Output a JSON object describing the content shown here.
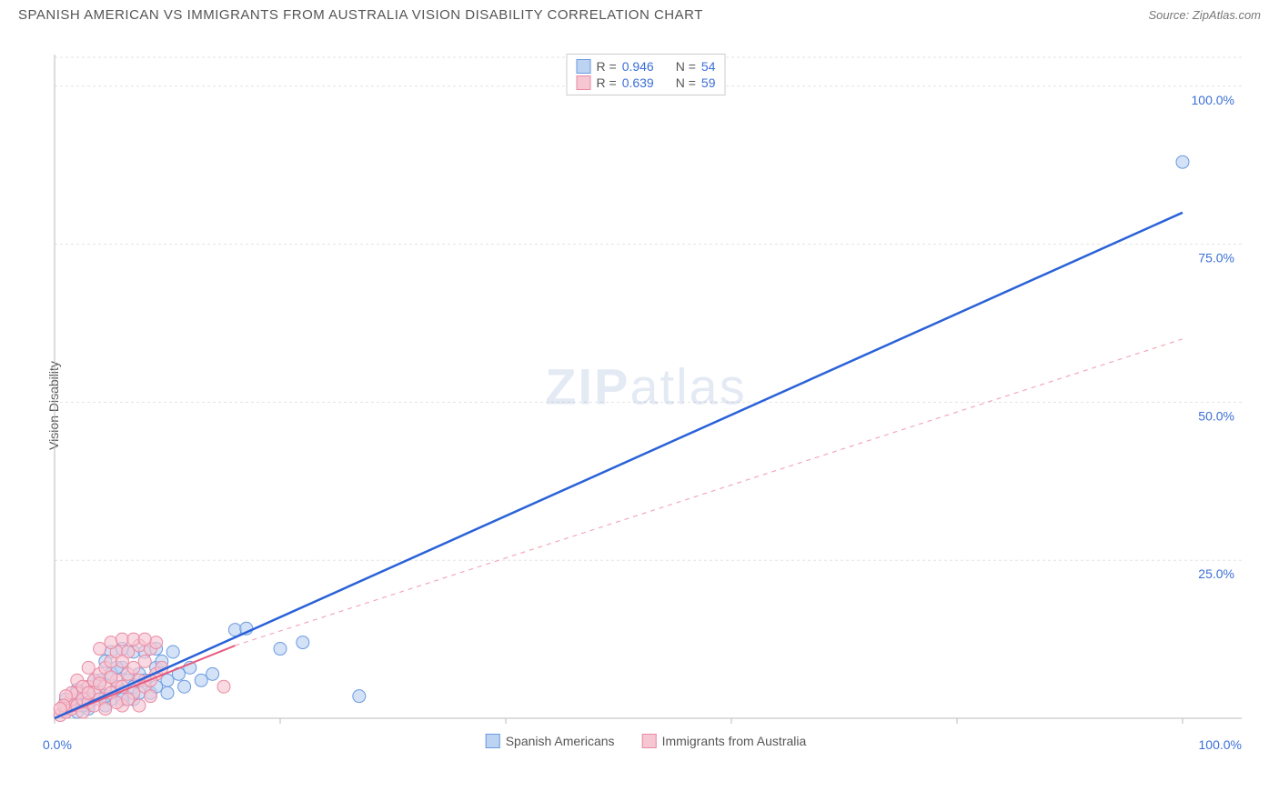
{
  "header": {
    "title": "SPANISH AMERICAN VS IMMIGRANTS FROM AUSTRALIA VISION DISABILITY CORRELATION CHART",
    "source": "Source: ZipAtlas.com"
  },
  "chart": {
    "type": "scatter",
    "ylabel": "Vision Disability",
    "watermark_a": "ZIP",
    "watermark_b": "atlas",
    "xlim": [
      0,
      100
    ],
    "ylim": [
      0,
      105
    ],
    "xtick_positions": [
      0,
      20,
      40,
      60,
      80,
      100
    ],
    "ytick_positions": [
      25,
      50,
      75,
      100
    ],
    "ytick_labels": [
      "25.0%",
      "50.0%",
      "75.0%",
      "100.0%"
    ],
    "x_start_label": "0.0%",
    "x_end_label": "100.0%",
    "grid_color": "#e3e3e3",
    "axis_color": "#cccccc",
    "background_color": "#ffffff",
    "series": [
      {
        "name": "Spanish Americans",
        "color_fill": "#bcd3f2",
        "color_stroke": "#6a9ae0",
        "marker_radius": 7,
        "r_value": "0.946",
        "n_value": "54",
        "trend": {
          "x1": 0,
          "y1": 0,
          "x2": 100,
          "y2": 80,
          "color": "#2a62d8",
          "width": 2.5,
          "dash": ""
        },
        "points": [
          [
            1,
            1
          ],
          [
            1.5,
            2
          ],
          [
            2,
            1
          ],
          [
            2,
            3
          ],
          [
            2.5,
            4
          ],
          [
            3,
            2
          ],
          [
            3,
            5
          ],
          [
            3.5,
            3
          ],
          [
            4,
            6
          ],
          [
            4,
            4
          ],
          [
            4.5,
            2
          ],
          [
            5,
            7
          ],
          [
            5,
            3
          ],
          [
            5.5,
            5
          ],
          [
            6,
            4
          ],
          [
            6,
            8
          ],
          [
            6.5,
            6
          ],
          [
            7,
            5
          ],
          [
            7,
            3
          ],
          [
            7.5,
            7
          ],
          [
            8,
            6
          ],
          [
            8.5,
            4
          ],
          [
            9,
            8
          ],
          [
            9,
            5
          ],
          [
            9.5,
            9
          ],
          [
            10,
            6
          ],
          [
            10,
            4
          ],
          [
            10.5,
            10.5
          ],
          [
            11,
            7
          ],
          [
            11.5,
            5
          ],
          [
            12,
            8
          ],
          [
            13,
            6
          ],
          [
            14,
            7
          ],
          [
            5,
            10.5
          ],
          [
            6,
            11
          ],
          [
            16,
            14
          ],
          [
            17,
            14.2
          ],
          [
            20,
            11
          ],
          [
            22,
            12
          ],
          [
            27,
            3.5
          ],
          [
            100,
            88
          ],
          [
            3,
            1.5
          ],
          [
            4.5,
            3.5
          ],
          [
            2.5,
            2
          ],
          [
            1,
            3
          ],
          [
            2,
            4.5
          ],
          [
            3.5,
            6
          ],
          [
            5.5,
            8
          ],
          [
            7,
            10.5
          ],
          [
            8,
            10.5
          ],
          [
            4.5,
            9
          ],
          [
            6,
            3
          ],
          [
            7.5,
            4
          ],
          [
            9,
            11
          ]
        ]
      },
      {
        "name": "Immigants from Australia",
        "label": "Immigrants from Australia",
        "color_fill": "#f6c6d2",
        "color_stroke": "#e98aa3",
        "marker_radius": 7,
        "r_value": "0.639",
        "n_value": "59",
        "trend_solid": {
          "x1": 0,
          "y1": 0,
          "x2": 16,
          "y2": 11.5,
          "color": "#e65a7e",
          "width": 2,
          "dash": ""
        },
        "trend_dash": {
          "x1": 16,
          "y1": 11.5,
          "x2": 100,
          "y2": 60,
          "color": "#f2a8ba",
          "width": 1.2,
          "dash": "5,5"
        },
        "points": [
          [
            0.5,
            0.5
          ],
          [
            1,
            1
          ],
          [
            1,
            2
          ],
          [
            1.5,
            1.5
          ],
          [
            1.5,
            3
          ],
          [
            2,
            2
          ],
          [
            2,
            4
          ],
          [
            2.5,
            1
          ],
          [
            2.5,
            3
          ],
          [
            3,
            2.5
          ],
          [
            3,
            5
          ],
          [
            3.5,
            4
          ],
          [
            3.5,
            6
          ],
          [
            4,
            3
          ],
          [
            4,
            7
          ],
          [
            4.5,
            5
          ],
          [
            4.5,
            8
          ],
          [
            5,
            4
          ],
          [
            5,
            9
          ],
          [
            5.5,
            6
          ],
          [
            5.5,
            10.5
          ],
          [
            6,
            5
          ],
          [
            6,
            2
          ],
          [
            6.5,
            7
          ],
          [
            6.5,
            10.5
          ],
          [
            7,
            4
          ],
          [
            7,
            8
          ],
          [
            7.5,
            6
          ],
          [
            7.5,
            11.5
          ],
          [
            8,
            5
          ],
          [
            8,
            9
          ],
          [
            8.5,
            11
          ],
          [
            9,
            7
          ],
          [
            8.5,
            3.5
          ],
          [
            9,
            12
          ],
          [
            4,
            11
          ],
          [
            5,
            12
          ],
          [
            6,
            12.5
          ],
          [
            2,
            6
          ],
          [
            3,
            8
          ],
          [
            2.5,
            5
          ],
          [
            1.5,
            4
          ],
          [
            1,
            3.5
          ],
          [
            0.8,
            2
          ],
          [
            0.5,
            1.5
          ],
          [
            3.5,
            2
          ],
          [
            4.5,
            1.5
          ],
          [
            5.5,
            2.5
          ],
          [
            6.5,
            3
          ],
          [
            7.5,
            2
          ],
          [
            8.5,
            6
          ],
          [
            9.5,
            8
          ],
          [
            7,
            12.5
          ],
          [
            8,
            12.5
          ],
          [
            6,
            9
          ],
          [
            5,
            6.5
          ],
          [
            4,
            5.5
          ],
          [
            3,
            4
          ],
          [
            15,
            5
          ]
        ]
      }
    ],
    "legend_stats": {
      "r_label": "R =",
      "n_label": "N ="
    },
    "legend_bottom": {
      "series1_label": "Spanish Americans",
      "series2_label": "Immigrants from Australia"
    }
  }
}
